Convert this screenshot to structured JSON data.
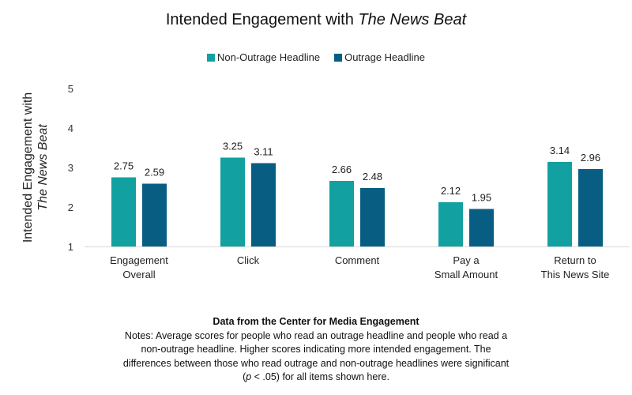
{
  "chart_data": {
    "type": "bar",
    "title": "Intended Engagement with",
    "title_italic": "The News Beat",
    "ylabel": "Intended Engagement with",
    "ylabel_italic": "The News Beat",
    "xlabel": "",
    "ylim": [
      1,
      5
    ],
    "yticks": [
      "1",
      "2",
      "3",
      "4",
      "5"
    ],
    "grid": false,
    "legend_position": "top-center",
    "categories": [
      [
        "Engagement",
        "Overall"
      ],
      [
        "Click"
      ],
      [
        "Comment"
      ],
      [
        "Pay a",
        "Small Amount"
      ],
      [
        "Return to",
        "This News Site"
      ]
    ],
    "series": [
      {
        "name": "Non-Outrage Headline",
        "color": "#12A0A0",
        "values": [
          2.75,
          3.25,
          2.66,
          2.12,
          3.14
        ],
        "labels": [
          "2.75",
          "3.25",
          "2.66",
          "2.12",
          "3.14"
        ]
      },
      {
        "name": "Outrage Headline",
        "color": "#075E82",
        "values": [
          2.59,
          3.11,
          2.48,
          1.95,
          2.96
        ],
        "labels": [
          "2.59",
          "3.11",
          "2.48",
          "1.95",
          "2.96"
        ]
      }
    ]
  },
  "notes": {
    "source": "Data from the Center for Media Engagement",
    "text_before_p": "Notes: Average scores for people who read an outrage headline and people who read a non-outrage headline. Higher scores indicating more intended engagement. The differences between those who read outrage and non-outrage headlines were significant (",
    "p": "p",
    "text_after_p": " < .05) for all items shown here."
  }
}
